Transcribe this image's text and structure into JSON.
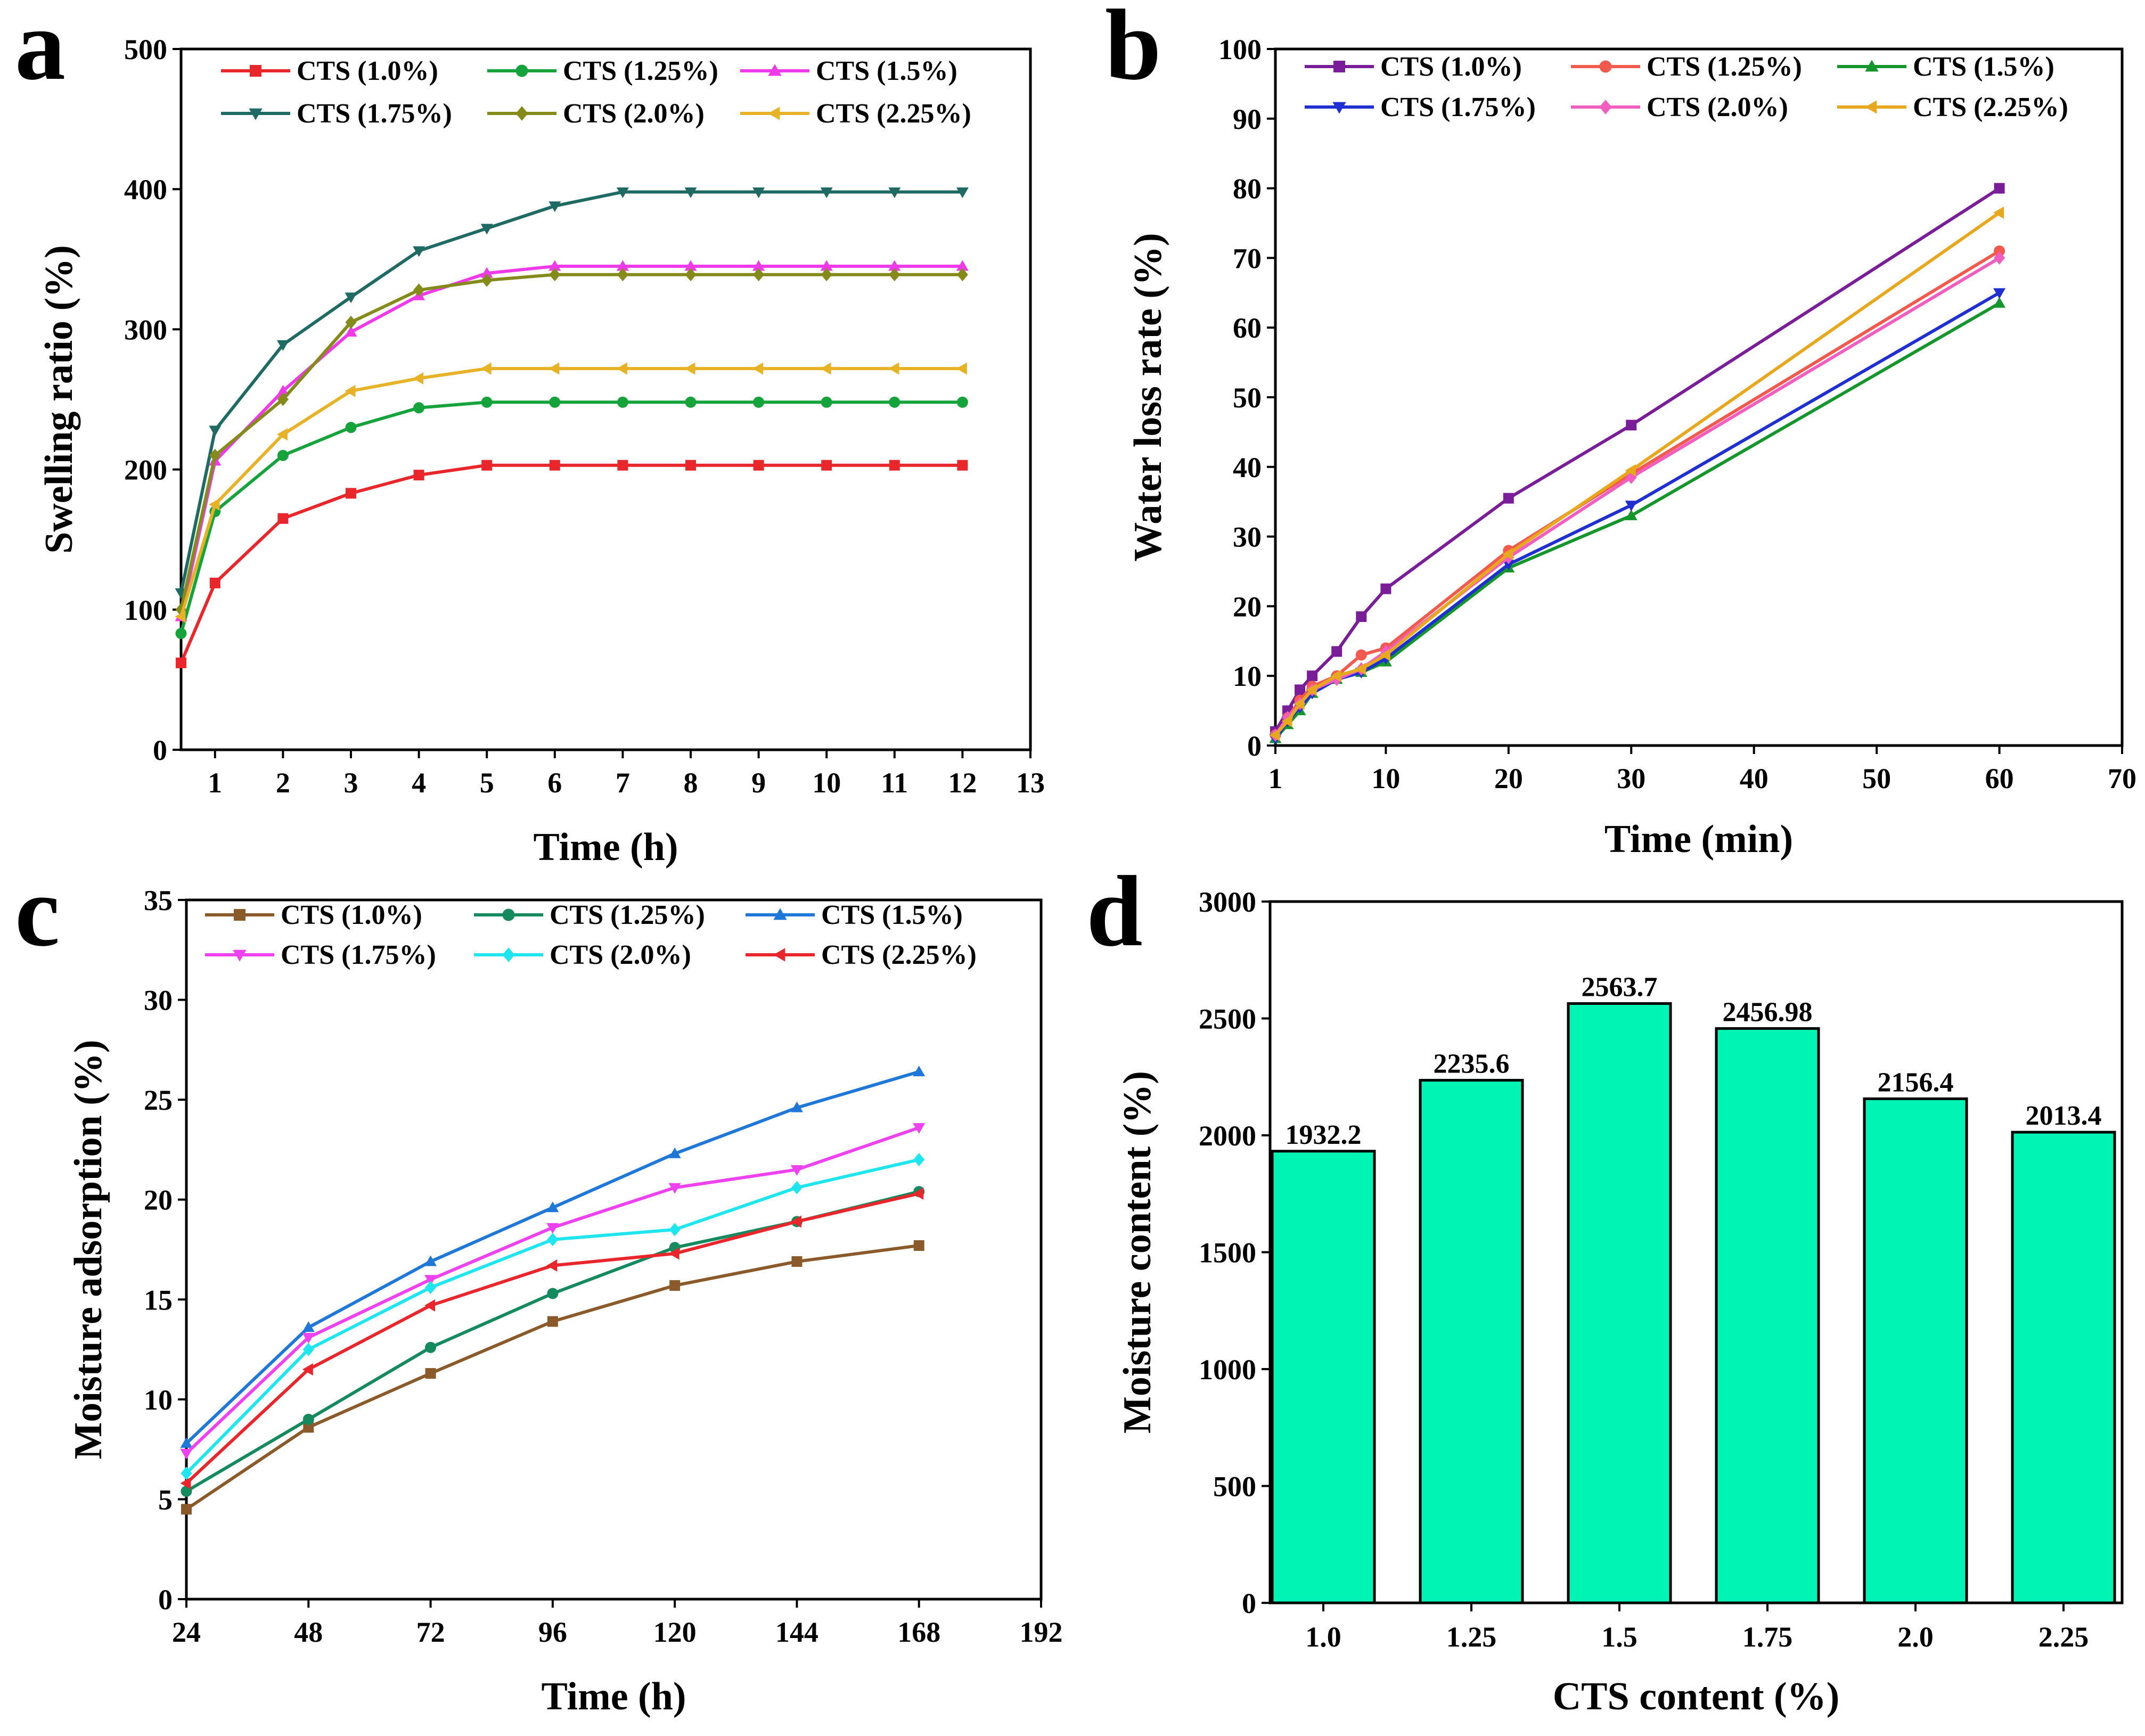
{
  "chart_data": [
    {
      "panel": "a",
      "type": "line",
      "xlabel": "Time (h)",
      "ylabel": "Swelling ratio (%)",
      "xlim": [
        0.5,
        13
      ],
      "ylim": [
        0,
        500
      ],
      "xticks": [
        1,
        2,
        3,
        4,
        5,
        6,
        7,
        8,
        9,
        10,
        11,
        12,
        13
      ],
      "yticks": [
        0,
        100,
        200,
        300,
        400,
        500
      ],
      "legend_columns": 3,
      "legend_position": "top",
      "x": [
        0.5,
        1,
        2,
        3,
        4,
        5,
        6,
        7,
        8,
        9,
        10,
        11,
        12
      ],
      "series": [
        {
          "name": "CTS (1.0%)",
          "color": "#e8262b",
          "marker": "square",
          "values": [
            62,
            119,
            165,
            183,
            196,
            203,
            203,
            203,
            203,
            203,
            203,
            203,
            203
          ]
        },
        {
          "name": "CTS (1.25%)",
          "color": "#17a33b",
          "marker": "circle",
          "values": [
            83,
            170,
            210,
            230,
            244,
            248,
            248,
            248,
            248,
            248,
            248,
            248,
            248
          ]
        },
        {
          "name": "CTS (1.5%)",
          "color": "#ee3ae8",
          "marker": "triangle-up",
          "values": [
            95,
            206,
            256,
            298,
            324,
            340,
            345,
            345,
            345,
            345,
            345,
            345,
            345
          ]
        },
        {
          "name": "CTS (1.75%)",
          "color": "#1f6b64",
          "marker": "triangle-down",
          "values": [
            112,
            228,
            289,
            323,
            356,
            372,
            388,
            398,
            398,
            398,
            398,
            398,
            398
          ]
        },
        {
          "name": "CTS (2.0%)",
          "color": "#858b1b",
          "marker": "diamond",
          "values": [
            100,
            210,
            250,
            305,
            328,
            335,
            339,
            339,
            339,
            339,
            339,
            339,
            339
          ]
        },
        {
          "name": "CTS (2.25%)",
          "color": "#e8b227",
          "marker": "triangle-left",
          "values": [
            95,
            175,
            225,
            256,
            265,
            272,
            272,
            272,
            272,
            272,
            272,
            272,
            272
          ]
        }
      ]
    },
    {
      "panel": "b",
      "type": "line",
      "xlabel": "Time (min)",
      "ylabel": "Water loss rate (%)",
      "xlim": [
        1,
        70
      ],
      "ylim": [
        0,
        100
      ],
      "xticks": [
        1,
        10,
        20,
        30,
        40,
        50,
        60,
        70
      ],
      "yticks": [
        0,
        10,
        20,
        30,
        40,
        50,
        60,
        70,
        80,
        90,
        100
      ],
      "legend_columns": 3,
      "legend_position": "top",
      "x": [
        1,
        2,
        3,
        4,
        6,
        8,
        10,
        20,
        30,
        60
      ],
      "series": [
        {
          "name": "CTS (1.0%)",
          "color": "#7a1d99",
          "marker": "square",
          "values": [
            2,
            5,
            8,
            10,
            13.5,
            18.5,
            22.5,
            35.5,
            46,
            80
          ]
        },
        {
          "name": "CTS (1.25%)",
          "color": "#f25a4e",
          "marker": "circle",
          "values": [
            1.5,
            4,
            6.5,
            8.5,
            10,
            13,
            14,
            28,
            39,
            71
          ]
        },
        {
          "name": "CTS (1.5%)",
          "color": "#14962d",
          "marker": "triangle-up",
          "values": [
            1,
            3,
            5,
            7.5,
            9.5,
            10.5,
            12,
            25.5,
            33,
            63.5
          ]
        },
        {
          "name": "CTS (1.75%)",
          "color": "#1f2fd0",
          "marker": "triangle-down",
          "values": [
            1,
            3.5,
            5.5,
            7.5,
            9.5,
            10.5,
            12.5,
            26,
            34.5,
            65
          ]
        },
        {
          "name": "CTS (2.0%)",
          "color": "#f25ec0",
          "marker": "diamond",
          "values": [
            1.5,
            4,
            6,
            8,
            9.5,
            11,
            13.5,
            27,
            38.5,
            70
          ]
        },
        {
          "name": "CTS (2.25%)",
          "color": "#e8a81e",
          "marker": "triangle-left",
          "values": [
            1.5,
            3.5,
            6,
            8,
            10,
            11,
            13,
            27.5,
            39.5,
            76.5
          ]
        }
      ]
    },
    {
      "panel": "c",
      "type": "line",
      "xlabel": "Time (h)",
      "ylabel": "Moisture adsorption (%)",
      "xlim": [
        24,
        192
      ],
      "ylim": [
        0,
        35
      ],
      "xticks": [
        24,
        48,
        72,
        96,
        120,
        144,
        168,
        192
      ],
      "yticks": [
        0,
        5,
        10,
        15,
        20,
        25,
        30,
        35
      ],
      "legend_columns": 3,
      "legend_position": "top",
      "x": [
        24,
        48,
        72,
        96,
        120,
        144,
        168
      ],
      "series": [
        {
          "name": "CTS (1.0%)",
          "color": "#8b5a2b",
          "marker": "square",
          "values": [
            4.5,
            8.6,
            11.3,
            13.9,
            15.7,
            16.9,
            17.7
          ]
        },
        {
          "name": "CTS (1.25%)",
          "color": "#158a5e",
          "marker": "circle",
          "values": [
            5.4,
            9.0,
            12.6,
            15.3,
            17.6,
            18.9,
            20.4
          ]
        },
        {
          "name": "CTS (1.5%)",
          "color": "#1f78d8",
          "marker": "triangle-up",
          "values": [
            7.8,
            13.6,
            16.9,
            19.6,
            22.3,
            24.6,
            26.4
          ]
        },
        {
          "name": "CTS (1.75%)",
          "color": "#ee42f0",
          "marker": "triangle-down",
          "values": [
            7.3,
            13.1,
            16.0,
            18.6,
            20.6,
            21.5,
            23.6
          ]
        },
        {
          "name": "CTS (2.0%)",
          "color": "#1fe6ee",
          "marker": "diamond",
          "values": [
            6.3,
            12.5,
            15.6,
            18.0,
            18.5,
            20.6,
            22.0
          ]
        },
        {
          "name": "CTS (2.25%)",
          "color": "#e8262b",
          "marker": "triangle-left",
          "values": [
            5.8,
            11.5,
            14.7,
            16.7,
            17.3,
            18.9,
            20.3
          ]
        }
      ]
    },
    {
      "panel": "d",
      "type": "bar",
      "xlabel": "CTS content (%)",
      "ylabel": "Moisture content (%)",
      "ylim": [
        0,
        3000
      ],
      "yticks": [
        0,
        500,
        1000,
        1500,
        2000,
        2500,
        3000
      ],
      "bar_color": "#00f5b4",
      "categories": [
        "1.0",
        "1.25",
        "1.5",
        "1.75",
        "2.0",
        "2.25"
      ],
      "values": [
        1932.2,
        2235.6,
        2563.7,
        2456.98,
        2156.4,
        2013.4
      ],
      "value_labels": [
        "1932.2",
        "2235.6",
        "2563.7",
        "2456.98",
        "2156.4",
        "2013.4"
      ]
    }
  ]
}
